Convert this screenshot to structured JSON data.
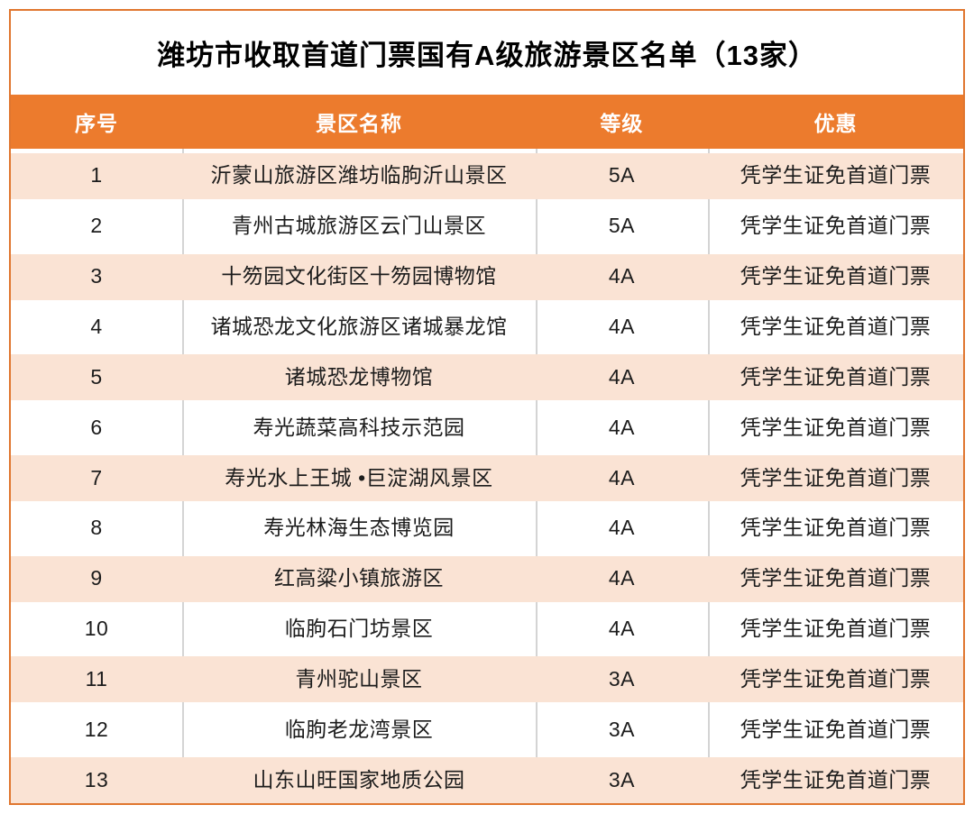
{
  "page_title": "潍坊市收取首道门票国有A级旅游景区名单（13家）",
  "table": {
    "columns": [
      {
        "key": "no",
        "label": "序号"
      },
      {
        "key": "name",
        "label": "景区名称"
      },
      {
        "key": "level",
        "label": "等级"
      },
      {
        "key": "discount",
        "label": "优惠"
      }
    ],
    "rows": [
      {
        "no": "1",
        "name": "沂蒙山旅游区潍坊临朐沂山景区",
        "level": "5A",
        "discount": "凭学生证免首道门票"
      },
      {
        "no": "2",
        "name": "青州古城旅游区云门山景区",
        "level": "5A",
        "discount": "凭学生证免首道门票"
      },
      {
        "no": "3",
        "name": "十笏园文化街区十笏园博物馆",
        "level": "4A",
        "discount": "凭学生证免首道门票"
      },
      {
        "no": "4",
        "name": "诸城恐龙文化旅游区诸城暴龙馆",
        "level": "4A",
        "discount": "凭学生证免首道门票"
      },
      {
        "no": "5",
        "name": "诸城恐龙博物馆",
        "level": "4A",
        "discount": "凭学生证免首道门票"
      },
      {
        "no": "6",
        "name": "寿光蔬菜高科技示范园",
        "level": "4A",
        "discount": "凭学生证免首道门票"
      },
      {
        "no": "7",
        "name": "寿光水上王城 •巨淀湖风景区",
        "level": "4A",
        "discount": "凭学生证免首道门票"
      },
      {
        "no": "8",
        "name": "寿光林海生态博览园",
        "level": "4A",
        "discount": "凭学生证免首道门票"
      },
      {
        "no": "9",
        "name": "红高粱小镇旅游区",
        "level": "4A",
        "discount": "凭学生证免首道门票"
      },
      {
        "no": "10",
        "name": "临朐石门坊景区",
        "level": "4A",
        "discount": "凭学生证免首道门票"
      },
      {
        "no": "11",
        "name": "青州驼山景区",
        "level": "3A",
        "discount": "凭学生证免首道门票"
      },
      {
        "no": "12",
        "name": "临朐老龙湾景区",
        "level": "3A",
        "discount": "凭学生证免首道门票"
      },
      {
        "no": "13",
        "name": "山东山旺国家地质公园",
        "level": "3A",
        "discount": "凭学生证免首道门票"
      }
    ]
  },
  "colors": {
    "header_bg": "#EC7B2D",
    "alt_bg": "#FAE3D4",
    "frame_border": "#E0762F",
    "divider": "#D4D4D4",
    "header_text": "#FFFFFF",
    "text": "#1C1C1C",
    "title_text": "#000000"
  }
}
